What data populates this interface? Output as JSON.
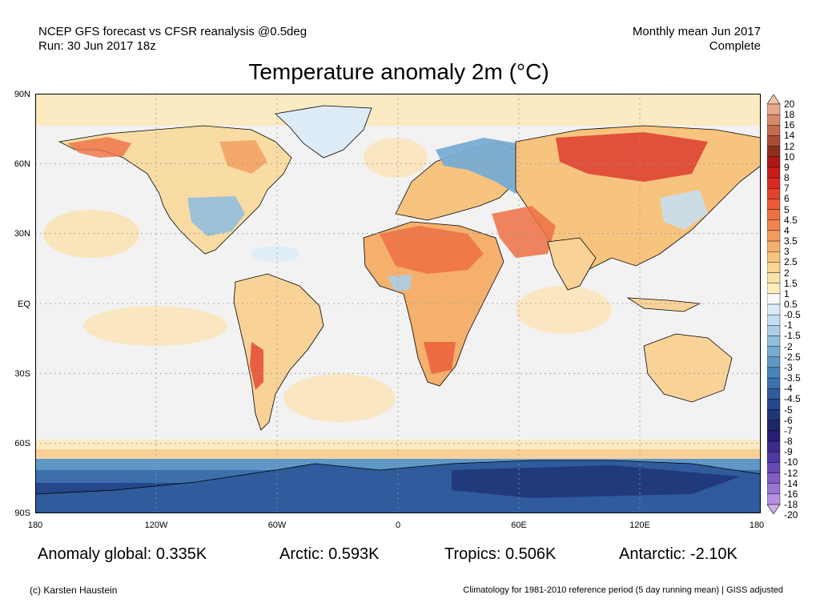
{
  "header": {
    "left_line1": "NCEP GFS forecast vs CFSR reanalysis @0.5deg",
    "left_line2": "Run: 30 Jun 2017 18z",
    "right_line1": "Monthly mean Jun 2017",
    "right_line2": "Complete"
  },
  "title": "Temperature anomaly 2m (°C)",
  "map": {
    "lat_ticks": [
      "90N",
      "60N",
      "30N",
      "EQ",
      "30S",
      "60S",
      "90S"
    ],
    "lon_ticks": [
      "180",
      "120W",
      "60W",
      "0",
      "60E",
      "120E",
      "180"
    ],
    "ocean_color": "#f2f2f2"
  },
  "colorbar": {
    "labels": [
      "20",
      "18",
      "16",
      "14",
      "12",
      "10",
      "9",
      "8",
      "7",
      "6",
      "5",
      "4.5",
      "4",
      "3.5",
      "3",
      "2.5",
      "2",
      "1.5",
      "1",
      "0.5",
      "-0.5",
      "-1",
      "-1.5",
      "-2",
      "-2.5",
      "-3",
      "-3.5",
      "-4",
      "-4.5",
      "-5",
      "-6",
      "-7",
      "-8",
      "-9",
      "-10",
      "-12",
      "-14",
      "-16",
      "-18",
      "-20"
    ],
    "colors": [
      "#f2c4ac",
      "#e5a88c",
      "#d68a6d",
      "#c46c4f",
      "#a94e34",
      "#8e2f1b",
      "#b0161a",
      "#c81c1c",
      "#d92a23",
      "#e3412c",
      "#ea5a38",
      "#ee7043",
      "#f1854f",
      "#f39b5c",
      "#f5b06d",
      "#f7c47f",
      "#f8d593",
      "#fae3a8",
      "#fcedbe",
      "#f8f8f8",
      "#ddecf7",
      "#c6dff0",
      "#accfe7",
      "#92bedd",
      "#78acd3",
      "#5f98c7",
      "#4b84ba",
      "#3c6fac",
      "#305b9c",
      "#26478b",
      "#1f3679",
      "#1c2767",
      "#261e78",
      "#3b2a8e",
      "#4f38a3",
      "#6749b5",
      "#7f5dc5",
      "#9a76d3",
      "#b592df",
      "#cdb2ea"
    ]
  },
  "stats": {
    "global": "Anomaly global: 0.335K",
    "arctic": "Arctic: 0.593K",
    "tropics": "Tropics: 0.506K",
    "antarctic": "Antarctic: -2.10K"
  },
  "footer": {
    "left": "(c) Karsten Haustein",
    "right": "Climatology for 1981-2010 reference period (5 day running mean) | GISS adjusted"
  }
}
